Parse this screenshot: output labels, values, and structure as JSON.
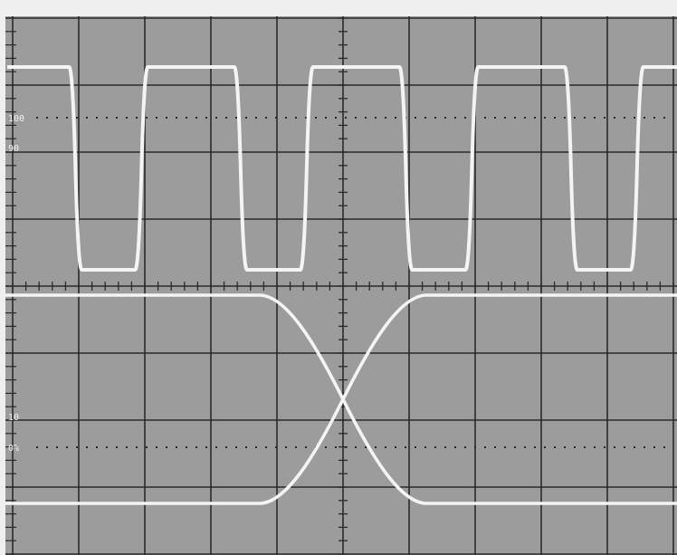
{
  "screen": {
    "bezel_color": "#efefef",
    "background_color": "#9c9c9c",
    "grid_color": "#2a2a2a",
    "trace_color": "#f4f4f4"
  },
  "graticule": {
    "divisions_x": 10,
    "divisions_y": 8,
    "markers": [
      {
        "text": "100",
        "level": 100,
        "dotted": true
      },
      {
        "text": "90",
        "level": 90,
        "dotted": false
      },
      {
        "text": "10",
        "level": 10,
        "dotted": false
      },
      {
        "text": "0%",
        "level": 0,
        "dotted": true
      }
    ]
  },
  "traces": {
    "square_wave": {
      "period_div": 2.5,
      "high_div": 1.5,
      "first_fall_div": 0.95
    },
    "eye_pattern": {
      "cross_div": 5.0,
      "transition_div": 1.6
    }
  }
}
